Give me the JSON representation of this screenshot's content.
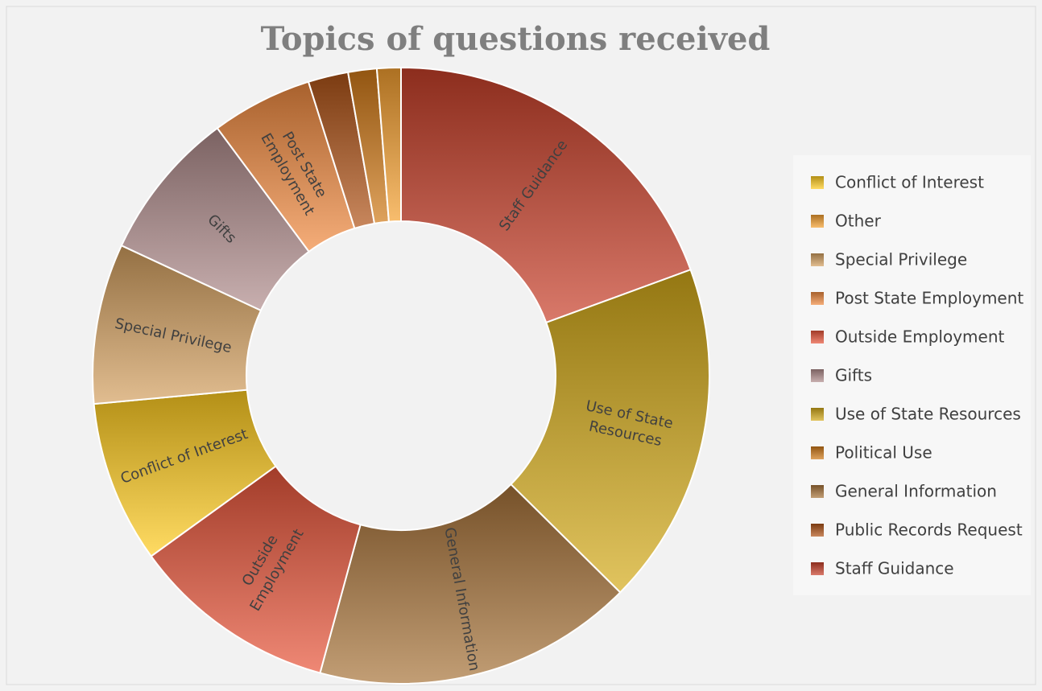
{
  "chart_data": {
    "type": "donut",
    "title": "Topics of questions received",
    "categories": [
      "Staff Guidance",
      "Use of State Resources",
      "General Information",
      "Outside Employment",
      "Conflict of Interest",
      "Special Privilege",
      "Gifts",
      "Post State Employment",
      "Public Records Request",
      "Political Use",
      "Other"
    ],
    "values": [
      19.4,
      18,
      16.8,
      10.8,
      8.5,
      8.4,
      7.9,
      5.3,
      2.1,
      1.5,
      1.25
    ],
    "colors": [
      "#c8402a",
      "#d4aa1a",
      "#a8743a",
      "#e8553a",
      "#ffcc20",
      "#d4a060",
      "#b08c8c",
      "#f08a40",
      "#b05418",
      "#d07a18",
      "#f5a030"
    ],
    "legend": [
      "Conflict of Interest",
      "Other",
      "Special Privilege",
      "Post State Employment",
      "Outside Employment",
      "Gifts",
      "Use of State Resources",
      "Political Use",
      "General Information",
      "Public Records Request",
      "Staff Guidance"
    ],
    "legend_position": "right"
  }
}
